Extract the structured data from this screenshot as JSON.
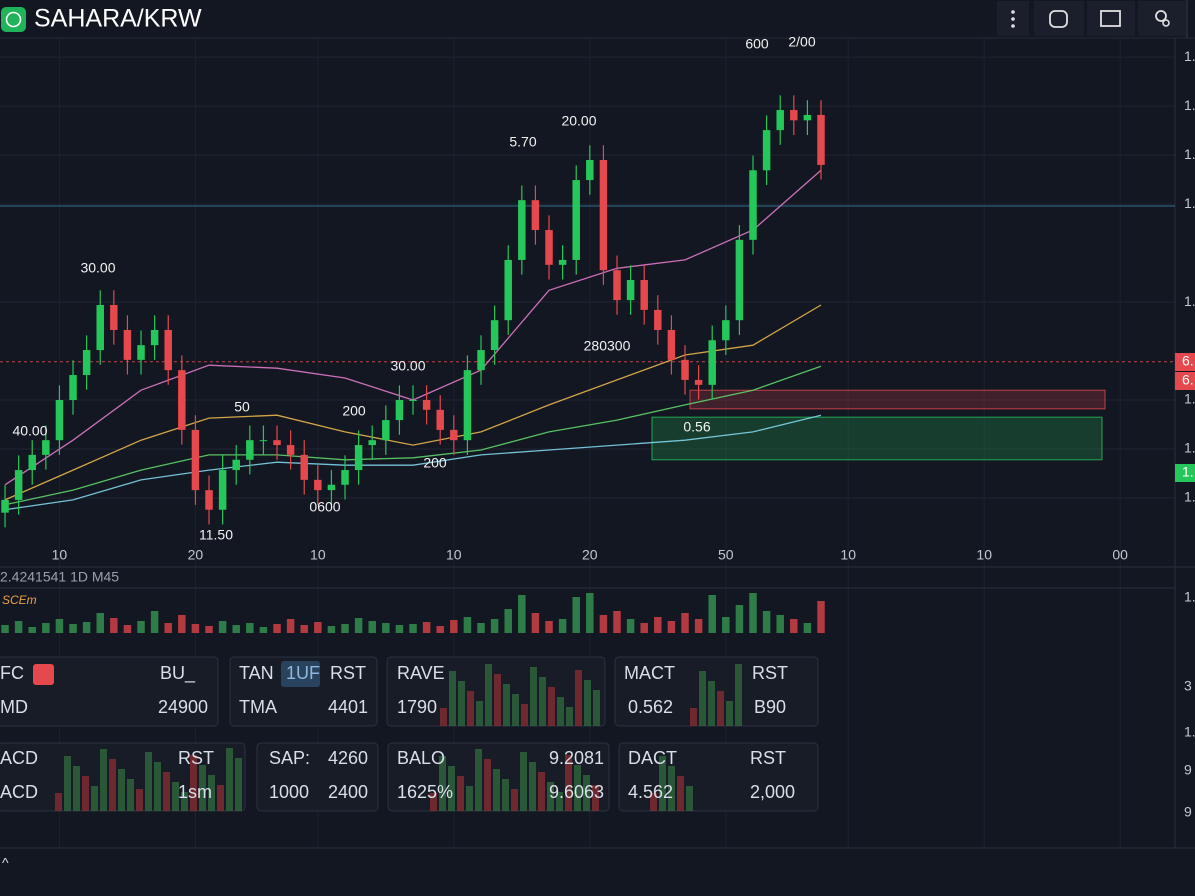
{
  "header": {
    "title": "SAHARA/KRW"
  },
  "chart_data": {
    "type": "candlestick",
    "open": [
      0.97,
      0.996,
      1.057,
      1.088,
      1.118,
      1.2,
      1.251,
      1.302,
      1.394,
      1.343,
      1.282,
      1.312,
      1.343,
      1.261,
      1.139,
      1.016,
      0.976,
      1.057,
      1.078,
      1.118,
      1.118,
      1.108,
      1.088,
      1.037,
      1.016,
      1.027,
      1.057,
      1.108,
      1.118,
      1.159,
      1.2,
      1.2,
      1.18,
      1.139,
      1.118,
      1.261,
      1.302,
      1.363,
      1.486,
      1.608,
      1.547,
      1.476,
      1.486,
      1.649,
      1.69,
      1.465,
      1.404,
      1.445,
      1.384,
      1.343,
      1.282,
      1.241,
      1.231,
      1.322,
      1.363,
      1.527,
      1.669,
      1.751,
      1.792,
      1.771,
      1.782
    ],
    "high": [
      1.026,
      1.087,
      1.118,
      1.148,
      1.23,
      1.281,
      1.332,
      1.424,
      1.424,
      1.373,
      1.342,
      1.373,
      1.373,
      1.291,
      1.169,
      1.046,
      1.087,
      1.108,
      1.148,
      1.148,
      1.148,
      1.138,
      1.118,
      1.067,
      1.057,
      1.087,
      1.138,
      1.148,
      1.189,
      1.23,
      1.23,
      1.23,
      1.21,
      1.169,
      1.291,
      1.332,
      1.393,
      1.516,
      1.638,
      1.638,
      1.577,
      1.516,
      1.679,
      1.72,
      1.72,
      1.495,
      1.475,
      1.475,
      1.414,
      1.373,
      1.312,
      1.271,
      1.352,
      1.393,
      1.557,
      1.699,
      1.781,
      1.822,
      1.822,
      1.812,
      1.812
    ],
    "low": [
      0.94,
      0.966,
      1.027,
      1.058,
      1.088,
      1.17,
      1.221,
      1.272,
      1.313,
      1.252,
      1.252,
      1.282,
      1.231,
      1.109,
      0.986,
      0.946,
      0.946,
      1.027,
      1.048,
      1.088,
      1.078,
      1.058,
      1.007,
      0.986,
      0.986,
      0.997,
      1.027,
      1.078,
      1.088,
      1.129,
      1.17,
      1.15,
      1.109,
      1.088,
      1.088,
      1.231,
      1.272,
      1.333,
      1.456,
      1.517,
      1.446,
      1.446,
      1.456,
      1.619,
      1.435,
      1.374,
      1.374,
      1.354,
      1.313,
      1.252,
      1.211,
      1.201,
      1.201,
      1.292,
      1.333,
      1.497,
      1.639,
      1.721,
      1.741,
      1.741,
      1.65
    ],
    "close": [
      0.996,
      1.057,
      1.088,
      1.118,
      1.2,
      1.251,
      1.302,
      1.394,
      1.343,
      1.282,
      1.312,
      1.343,
      1.261,
      1.139,
      1.016,
      0.976,
      1.057,
      1.078,
      1.118,
      1.118,
      1.108,
      1.088,
      1.037,
      1.016,
      1.027,
      1.057,
      1.108,
      1.118,
      1.159,
      1.2,
      1.2,
      1.18,
      1.139,
      1.118,
      1.261,
      1.302,
      1.363,
      1.486,
      1.608,
      1.547,
      1.476,
      1.486,
      1.649,
      1.69,
      1.465,
      1.404,
      1.445,
      1.384,
      1.343,
      1.282,
      1.241,
      1.231,
      1.322,
      1.363,
      1.527,
      1.669,
      1.751,
      1.792,
      1.771,
      1.782,
      1.68
    ],
    "up_color": "#26c75a",
    "down_color": "#e5484d",
    "xlim": [
      -0.37,
      86.03
    ],
    "xticks": [
      {
        "value": 4,
        "label": "10"
      },
      {
        "value": 14,
        "label": "20"
      },
      {
        "value": 23,
        "label": "10"
      },
      {
        "value": 33,
        "label": "10"
      },
      {
        "value": 43,
        "label": "20"
      },
      {
        "value": 53,
        "label": "50"
      },
      {
        "value": 62,
        "label": "10"
      },
      {
        "value": 72,
        "label": "10"
      },
      {
        "value": 82,
        "label": "00"
      }
    ],
    "ylim": [
      0.904,
      1.935
    ],
    "yticks": [
      {
        "value": 1.9,
        "label": "1."
      },
      {
        "value": 1.8,
        "label": "1."
      },
      {
        "value": 1.7,
        "label": "1."
      },
      {
        "value": 1.6,
        "label": "1."
      },
      {
        "value": 1.4,
        "label": "1."
      },
      {
        "value": 1.2,
        "label": "1."
      },
      {
        "value": 1.1,
        "label": "1."
      },
      {
        "value": 1.0,
        "label": "1."
      }
    ],
    "grid": true,
    "moving_averages": [
      {
        "color": "#e07ac8",
        "x": [
          0,
          5,
          10,
          15,
          20,
          25,
          30,
          35,
          40,
          45,
          50,
          55,
          60
        ],
        "values": [
          1.027,
          1.118,
          1.22,
          1.271,
          1.265,
          1.245,
          1.2,
          1.261,
          1.424,
          1.469,
          1.486,
          1.547,
          1.669
        ]
      },
      {
        "color": "#e8b54a",
        "x": [
          0,
          5,
          10,
          15,
          20,
          25,
          30,
          35,
          40,
          45,
          50,
          55,
          60
        ],
        "values": [
          0.996,
          1.057,
          1.118,
          1.163,
          1.169,
          1.135,
          1.108,
          1.135,
          1.19,
          1.241,
          1.292,
          1.312,
          1.394
        ]
      },
      {
        "color": "#5fd36a",
        "x": [
          0,
          5,
          10,
          15,
          20,
          25,
          30,
          35,
          40,
          45,
          50,
          55,
          60
        ],
        "values": [
          0.986,
          1.016,
          1.057,
          1.088,
          1.088,
          1.078,
          1.082,
          1.098,
          1.135,
          1.159,
          1.19,
          1.22,
          1.269
        ]
      },
      {
        "color": "#7fd3e8",
        "x": [
          0,
          5,
          10,
          15,
          20,
          25,
          30,
          35,
          40,
          45,
          50,
          55,
          60
        ],
        "values": [
          0.976,
          0.996,
          1.037,
          1.057,
          1.073,
          1.067,
          1.067,
          1.088,
          1.098,
          1.108,
          1.118,
          1.135,
          1.169
        ]
      }
    ],
    "zones": [
      {
        "low": 1.182,
        "high": 1.22,
        "color": "#e5484d"
      },
      {
        "low": 1.078,
        "high": 1.165,
        "color": "#26c75a"
      }
    ],
    "lines": [
      {
        "value": 1.278,
        "color": "#c0454a"
      },
      {
        "value": 1.596,
        "color": "#2f6f8f"
      }
    ],
    "price_tags": [
      {
        "label": "6.",
        "color": "#e5484d"
      },
      {
        "label": "6.",
        "color": "#e5484d"
      },
      {
        "label": "1.",
        "color": "#26c75a"
      }
    ],
    "annotations": [
      "600",
      "2/00",
      "5.70",
      "20.00",
      "30.00",
      "40.00",
      "50",
      "200",
      "30.00",
      "200",
      "280300",
      "0.56",
      "0600",
      "11.50"
    ]
  },
  "volume": {
    "label": "2.4241541 1D M45",
    "name": "SCEm",
    "ylim": [
      0,
      45
    ],
    "yticks": [
      {
        "value": 35,
        "label": "1."
      }
    ],
    "values": [
      8,
      12,
      6,
      10,
      14,
      9,
      11,
      20,
      15,
      8,
      12,
      22,
      10,
      18,
      9,
      7,
      12,
      8,
      10,
      6,
      9,
      14,
      8,
      11,
      7,
      9,
      15,
      12,
      10,
      8,
      9,
      11,
      7,
      13,
      16,
      10,
      14,
      24,
      38,
      20,
      12,
      14,
      36,
      40,
      18,
      22,
      14,
      10,
      16,
      12,
      20,
      14,
      38,
      16,
      28,
      40,
      22,
      18,
      14,
      10,
      32
    ]
  },
  "side_labels": [
    "3",
    "1.",
    "9",
    "9"
  ],
  "panels": [
    [
      [
        "FC",
        "BU_"
      ],
      [
        "MD",
        "24900"
      ]
    ],
    [
      [
        "TAN",
        "1UF",
        "RST"
      ],
      [
        "TMA",
        "4401"
      ]
    ],
    [
      [
        "RAVE"
      ],
      [
        "1790"
      ]
    ],
    [
      [
        "MACT",
        "RST"
      ],
      [
        "0.562",
        "B90"
      ]
    ],
    [
      [
        "ACD",
        "RST"
      ],
      [
        "ACD",
        "1sm"
      ]
    ],
    [
      [
        "SAP:",
        "4260"
      ],
      [
        "1000",
        "2400"
      ]
    ],
    [
      [
        "BALO",
        "9.2081"
      ],
      [
        "1625%",
        "9.6063"
      ]
    ],
    [
      [
        "DACT",
        "RST"
      ],
      [
        "4.562",
        "2,000"
      ]
    ]
  ]
}
